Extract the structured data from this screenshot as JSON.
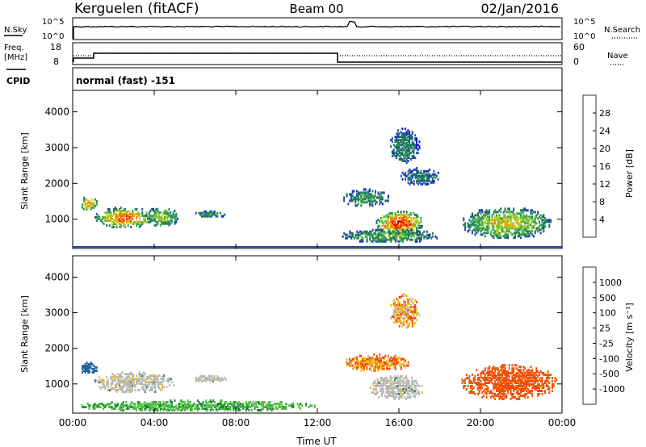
{
  "header": {
    "radar": "Kerguelen (fitACF)",
    "beam": "Beam 00",
    "date": "02/Jan/2016"
  },
  "strip_labels": {
    "nsky": "N.Sky",
    "nsky_ticks": [
      "10^5",
      "10^0"
    ],
    "nsearch": "N.Search",
    "nsearch_ticks": [
      "10^5",
      "10^0"
    ],
    "freq_line1": "Freq.",
    "freq_line2": "[MHz]",
    "freq_ticks": [
      "18",
      "8"
    ],
    "nave": "Nave",
    "nave_ticks": [
      "60",
      "0"
    ],
    "cpid": "CPID",
    "cpid_text": "normal (fast) -151"
  },
  "chart_data": [
    {
      "type": "heatmap",
      "name": "power",
      "ylabel": "Slant Range [km]",
      "xlabel": "Time UT",
      "xlim_hours": [
        0,
        24
      ],
      "ylim_km": [
        180,
        4600
      ],
      "x_ticks": [
        "00:00",
        "04:00",
        "08:00",
        "12:00",
        "16:00",
        "20:00",
        "00:00"
      ],
      "y_ticks": [
        "1000",
        "2000",
        "3000",
        "4000"
      ],
      "colorbar": {
        "label": "Power [dB]",
        "ticks": [
          "28",
          "24",
          "20",
          "16",
          "12",
          "8",
          "4"
        ],
        "colors": [
          "#1010e0",
          "#2040b0",
          "#206080",
          "#208050",
          "#30a050",
          "#70c040",
          "#c8d020",
          "#f0a000",
          "#f06000",
          "#e81000",
          "#d00000"
        ]
      },
      "regions": [
        {
          "t": [
            0.3,
            1.2
          ],
          "r": [
            1200,
            1600
          ],
          "level": 0.7
        },
        {
          "t": [
            1.0,
            4.0
          ],
          "r": [
            700,
            1300
          ],
          "level": 0.75
        },
        {
          "t": [
            3.5,
            5.2
          ],
          "r": [
            750,
            1300
          ],
          "level": 0.55
        },
        {
          "t": [
            5.8,
            7.5
          ],
          "r": [
            1000,
            1200
          ],
          "level": 0.4
        },
        {
          "t": [
            13.2,
            15.5
          ],
          "r": [
            1300,
            1800
          ],
          "level": 0.4
        },
        {
          "t": [
            14.8,
            17.2
          ],
          "r": [
            500,
            1200
          ],
          "level": 0.85
        },
        {
          "t": [
            15.5,
            17.0
          ],
          "r": [
            2500,
            3500
          ],
          "level": 0.35
        },
        {
          "t": [
            16.0,
            18.0
          ],
          "r": [
            1900,
            2400
          ],
          "level": 0.3
        },
        {
          "t": [
            19.0,
            23.5
          ],
          "r": [
            400,
            1300
          ],
          "level": 0.6
        },
        {
          "t": [
            13.0,
            18.0
          ],
          "r": [
            300,
            700
          ],
          "level": 0.45
        }
      ]
    },
    {
      "type": "heatmap",
      "name": "velocity",
      "ylabel": "Slant Range [km]",
      "xlabel": "Time UT",
      "xlim_hours": [
        0,
        24
      ],
      "ylim_km": [
        180,
        4600
      ],
      "x_ticks": [
        "00:00",
        "04:00",
        "08:00",
        "12:00",
        "16:00",
        "20:00",
        "00:00"
      ],
      "y_ticks": [
        "1000",
        "2000",
        "3000",
        "4000"
      ],
      "colorbar": {
        "label": "Velocity [m s⁻¹]",
        "ticks": [
          "1000",
          "500",
          "100",
          "25",
          "-25",
          "-100",
          "-500",
          "-1000"
        ],
        "colors": [
          "#2040d0",
          "#2060a0",
          "#208040",
          "#50c040",
          "#b8b8b8",
          "#b8b8b8",
          "#f0c000",
          "#f09000",
          "#f05000",
          "#e00000"
        ]
      },
      "regions": [
        {
          "t": [
            0.3,
            1.2
          ],
          "r": [
            1200,
            1600
          ],
          "v": 300
        },
        {
          "t": [
            1.0,
            5.0
          ],
          "r": [
            700,
            1300
          ],
          "v": 0
        },
        {
          "t": [
            5.8,
            7.5
          ],
          "r": [
            1000,
            1200
          ],
          "v": 0
        },
        {
          "t": [
            13.2,
            16.5
          ],
          "r": [
            1300,
            1800
          ],
          "v": -120
        },
        {
          "t": [
            14.5,
            17.2
          ],
          "r": [
            500,
            1200
          ],
          "v": 0
        },
        {
          "t": [
            15.5,
            17.0
          ],
          "r": [
            2500,
            3500
          ],
          "v": -80
        },
        {
          "t": [
            19.0,
            23.8
          ],
          "r": [
            500,
            1500
          ],
          "v": -300
        },
        {
          "t": [
            0.0,
            12.0
          ],
          "r": [
            180,
            500
          ],
          "v": 60
        }
      ]
    }
  ]
}
